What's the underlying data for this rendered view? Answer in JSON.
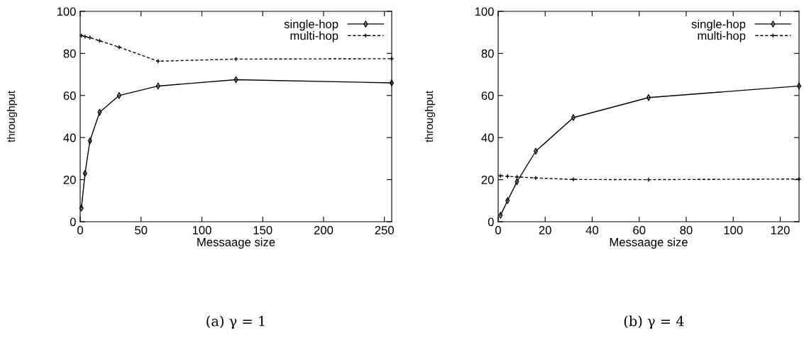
{
  "chart_data": [
    {
      "type": "line",
      "xlabel": "Messaage size",
      "ylabel": "throughput",
      "x": [
        1,
        4,
        8,
        16,
        32,
        64,
        128,
        256
      ],
      "xlim": [
        0,
        256
      ],
      "xticks": [
        0,
        50,
        100,
        150,
        200,
        250
      ],
      "ylim": [
        0,
        100
      ],
      "yticks": [
        0,
        20,
        40,
        60,
        80,
        100
      ],
      "grid": false,
      "legend": "top right",
      "annotations": [
        "(a) γ = 1"
      ],
      "series": [
        {
          "name": "single-hop",
          "color": "#000000",
          "marker": "diamond",
          "line_style": "solid",
          "values": [
            6.5,
            23,
            38.5,
            52,
            60,
            64.5,
            67.5,
            66
          ]
        },
        {
          "name": "multi-hop",
          "color": "#000000",
          "marker": "cross",
          "line_style": "dashed",
          "values": [
            88.5,
            88,
            87.5,
            86,
            83,
            76.3,
            77.3,
            77.5
          ]
        }
      ]
    },
    {
      "type": "line",
      "xlabel": "Messaage size",
      "ylabel": "throughput",
      "x": [
        1,
        4,
        8,
        16,
        32,
        64,
        128
      ],
      "xlim": [
        0,
        128
      ],
      "xticks": [
        0,
        20,
        40,
        60,
        80,
        100,
        120
      ],
      "ylim": [
        0,
        100
      ],
      "yticks": [
        0,
        20,
        40,
        60,
        80,
        100
      ],
      "grid": false,
      "legend": "top right",
      "annotations": [
        "(b) γ = 4"
      ],
      "series": [
        {
          "name": "single-hop",
          "color": "#000000",
          "marker": "diamond",
          "line_style": "solid",
          "values": [
            3,
            10,
            19,
            33.5,
            49.5,
            59,
            64.5
          ]
        },
        {
          "name": "multi-hop",
          "color": "#000000",
          "marker": "cross",
          "line_style": "dashed",
          "values": [
            21.8,
            21.6,
            21.3,
            20.8,
            20.1,
            20,
            20.3
          ]
        }
      ]
    }
  ]
}
